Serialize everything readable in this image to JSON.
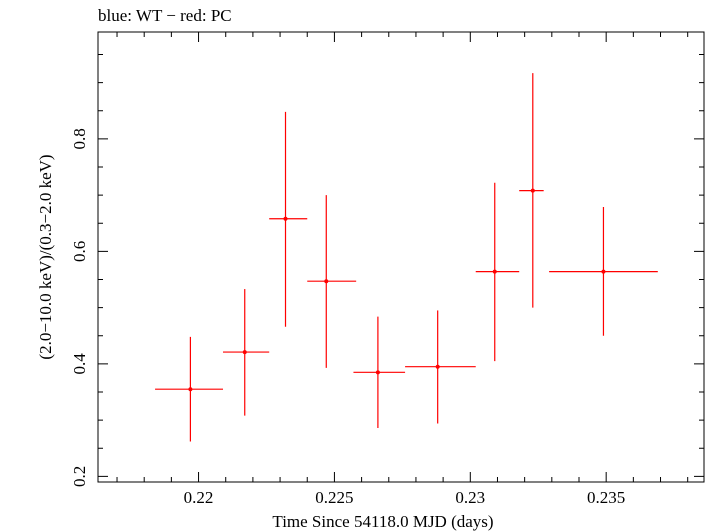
{
  "chart_data": {
    "type": "scatter",
    "title": "blue: WT − red: PC",
    "xlabel": "Time Since 54118.0 MJD (days)",
    "ylabel": "(2.0−10.0 keV)/(0.3−2.0 keV)",
    "xlim": [
      0.2163,
      0.2386
    ],
    "ylim": [
      0.19,
      0.99
    ],
    "x_ticks": [
      0.22,
      0.225,
      0.23,
      0.235
    ],
    "x_tick_labels": [
      "0.22",
      "0.225",
      "0.23",
      "0.235"
    ],
    "y_ticks": [
      0.2,
      0.4,
      0.6,
      0.8
    ],
    "y_tick_labels": [
      "0.2",
      "0.4",
      "0.6",
      "0.8"
    ],
    "grid": false,
    "series": [
      {
        "color": "#ff0000",
        "points": [
          {
            "x": 0.2197,
            "y": 0.355,
            "x_lo": 0.2184,
            "x_hi": 0.2209,
            "y_lo": 0.262,
            "y_hi": 0.448
          },
          {
            "x": 0.2217,
            "y": 0.421,
            "x_lo": 0.2209,
            "x_hi": 0.2226,
            "y_lo": 0.308,
            "y_hi": 0.533
          },
          {
            "x": 0.2232,
            "y": 0.658,
            "x_lo": 0.2226,
            "x_hi": 0.224,
            "y_lo": 0.466,
            "y_hi": 0.848
          },
          {
            "x": 0.2247,
            "y": 0.547,
            "x_lo": 0.224,
            "x_hi": 0.2258,
            "y_lo": 0.393,
            "y_hi": 0.7
          },
          {
            "x": 0.2266,
            "y": 0.385,
            "x_lo": 0.2257,
            "x_hi": 0.2276,
            "y_lo": 0.286,
            "y_hi": 0.484
          },
          {
            "x": 0.2288,
            "y": 0.395,
            "x_lo": 0.2276,
            "x_hi": 0.2302,
            "y_lo": 0.294,
            "y_hi": 0.495
          },
          {
            "x": 0.2309,
            "y": 0.564,
            "x_lo": 0.2302,
            "x_hi": 0.2318,
            "y_lo": 0.405,
            "y_hi": 0.722
          },
          {
            "x": 0.2323,
            "y": 0.708,
            "x_lo": 0.2318,
            "x_hi": 0.2327,
            "y_lo": 0.5,
            "y_hi": 0.917
          },
          {
            "x": 0.2349,
            "y": 0.564,
            "x_lo": 0.2329,
            "x_hi": 0.2369,
            "y_lo": 0.45,
            "y_hi": 0.679
          }
        ]
      }
    ]
  }
}
